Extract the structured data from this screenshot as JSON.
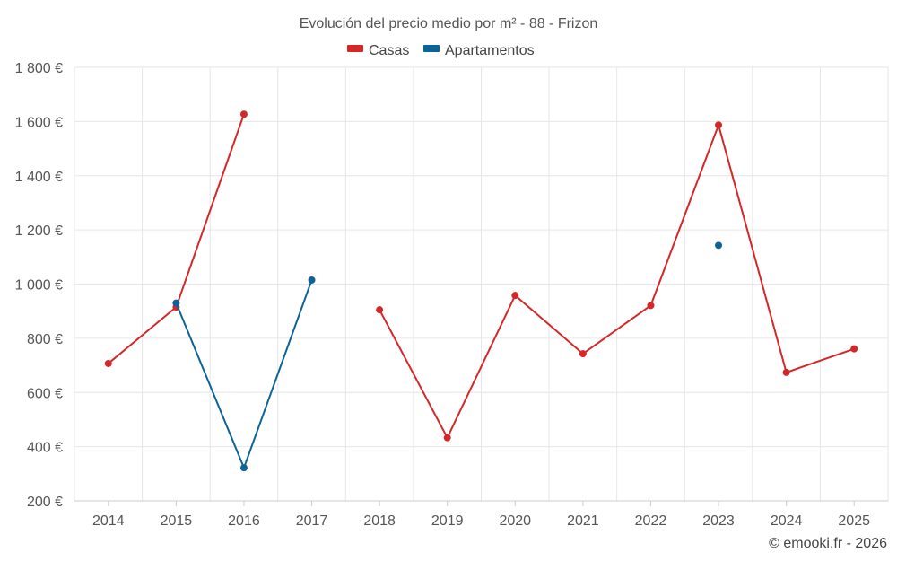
{
  "chart_data": {
    "type": "line",
    "title": "Evolución del precio medio por m² - 88 - Frizon",
    "xlabel": "",
    "ylabel": "",
    "categories": [
      "2014",
      "2015",
      "2016",
      "2017",
      "2018",
      "2019",
      "2020",
      "2021",
      "2022",
      "2023",
      "2024",
      "2025"
    ],
    "ylim": [
      200,
      1800
    ],
    "yticks": [
      200,
      400,
      600,
      800,
      1000,
      1200,
      1400,
      1600,
      1800
    ],
    "ytick_labels": [
      "200 €",
      "400 €",
      "600 €",
      "800 €",
      "1 000 €",
      "1 200 €",
      "1 400 €",
      "1 600 €",
      "1 800 €"
    ],
    "legend_position": "top-center",
    "grid": true,
    "series": [
      {
        "name": "Casas",
        "color": "#d62728",
        "values": [
          707,
          915,
          1627,
          null,
          905,
          433,
          958,
          743,
          921,
          1587,
          674,
          761
        ]
      },
      {
        "name": "Apartamentos",
        "color": "#0e6396",
        "values": [
          null,
          930,
          322,
          1015,
          null,
          null,
          null,
          null,
          null,
          1143,
          null,
          null
        ]
      }
    ]
  },
  "credit": "© emooki.fr - 2026"
}
